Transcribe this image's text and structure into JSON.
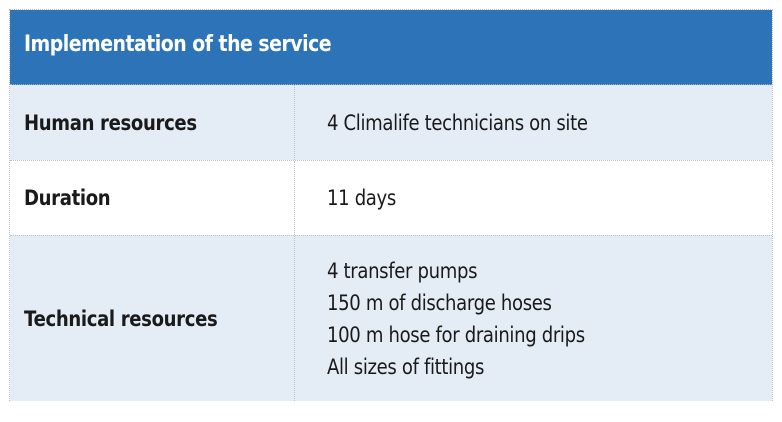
{
  "table": {
    "title": "Implementation of the service",
    "rows": [
      {
        "label": "Human resources",
        "values": [
          "4 Climalife technicians on site"
        ]
      },
      {
        "label": "Duration",
        "values": [
          "11 days"
        ]
      },
      {
        "label": "Technical resources",
        "values": [
          "4 transfer pumps",
          "150 m of discharge hoses",
          "100 m hose for draining drips",
          "All sizes of fittings"
        ]
      }
    ]
  },
  "colors": {
    "header_background": "#2c74b7",
    "header_text": "#ffffff",
    "shaded_row": "#e4ecf6",
    "plain_row": "#ffffff",
    "body_text": "#1a1a1a"
  }
}
